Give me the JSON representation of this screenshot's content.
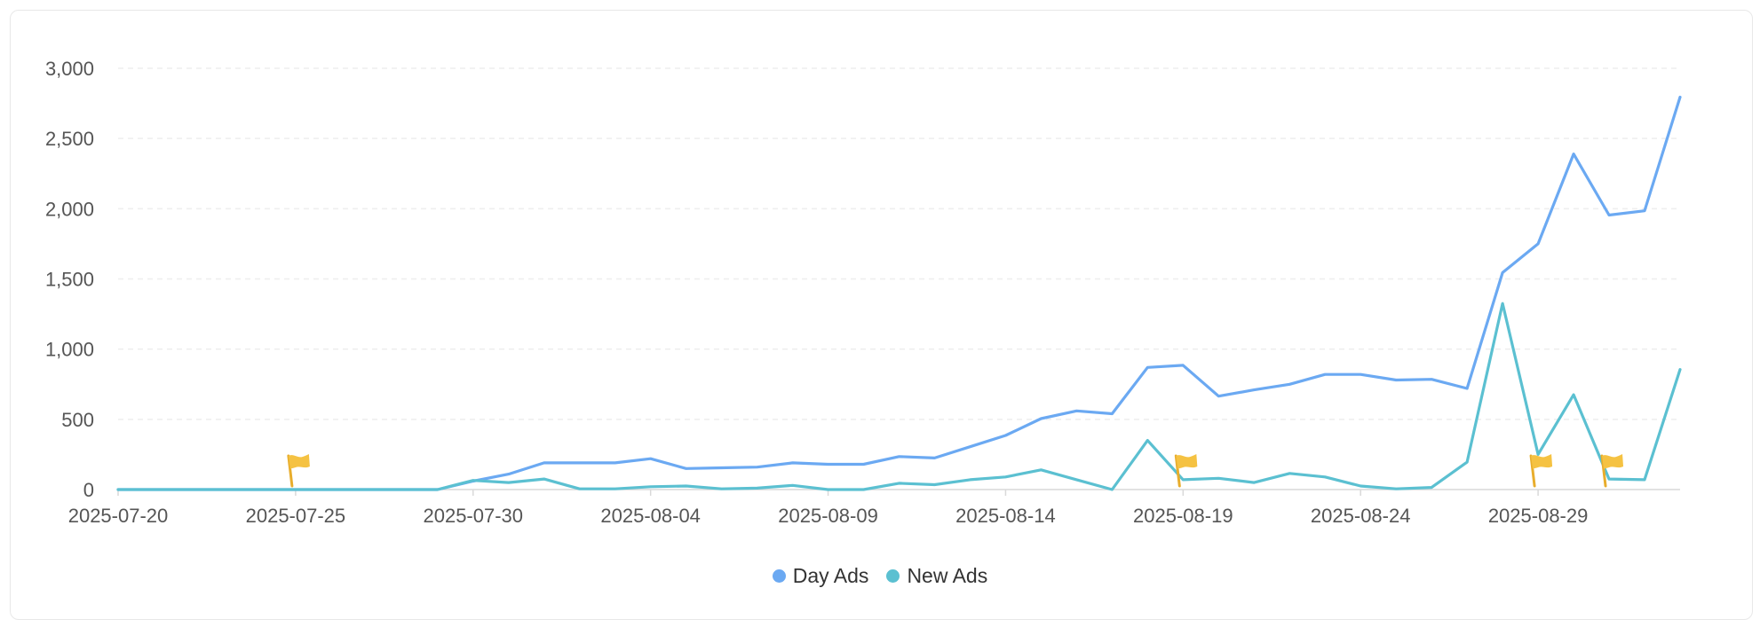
{
  "chart_data": {
    "type": "line",
    "x": [
      "2025-07-20",
      "2025-07-21",
      "2025-07-22",
      "2025-07-23",
      "2025-07-24",
      "2025-07-25",
      "2025-07-26",
      "2025-07-27",
      "2025-07-28",
      "2025-07-29",
      "2025-07-30",
      "2025-07-31",
      "2025-08-01",
      "2025-08-02",
      "2025-08-03",
      "2025-08-04",
      "2025-08-05",
      "2025-08-06",
      "2025-08-07",
      "2025-08-08",
      "2025-08-09",
      "2025-08-10",
      "2025-08-11",
      "2025-08-12",
      "2025-08-13",
      "2025-08-14",
      "2025-08-15",
      "2025-08-16",
      "2025-08-17",
      "2025-08-18",
      "2025-08-19",
      "2025-08-20",
      "2025-08-21",
      "2025-08-22",
      "2025-08-23",
      "2025-08-24",
      "2025-08-25",
      "2025-08-26",
      "2025-08-27",
      "2025-08-28",
      "2025-08-29",
      "2025-08-30",
      "2025-08-31",
      "2025-09-01",
      "2025-09-02"
    ],
    "x_tick_labels": [
      "2025-07-20",
      "2025-07-25",
      "2025-07-30",
      "2025-08-04",
      "2025-08-09",
      "2025-08-14",
      "2025-08-19",
      "2025-08-24",
      "2025-08-29"
    ],
    "y_tick_labels": [
      "3,000",
      "2,500",
      "2,000",
      "1,500",
      "1,000",
      "500",
      "0"
    ],
    "ylim": [
      0,
      3000
    ],
    "grid": true,
    "legend_position": "bottom-center",
    "series": [
      {
        "name": "Day Ads",
        "color": "#6ba9f2",
        "values": [
          0,
          0,
          0,
          0,
          0,
          0,
          0,
          0,
          0,
          0,
          60,
          110,
          190,
          190,
          190,
          220,
          150,
          155,
          160,
          190,
          180,
          180,
          235,
          225,
          305,
          385,
          505,
          560,
          540,
          870,
          885,
          665,
          710,
          750,
          820,
          820,
          780,
          785,
          720,
          1545,
          1750,
          2390,
          1955,
          1985,
          2795
        ]
      },
      {
        "name": "New Ads",
        "color": "#5bc0d1",
        "values": [
          0,
          0,
          0,
          0,
          0,
          0,
          0,
          0,
          0,
          0,
          65,
          50,
          75,
          5,
          5,
          20,
          25,
          5,
          10,
          30,
          0,
          0,
          45,
          35,
          70,
          90,
          140,
          70,
          0,
          350,
          70,
          80,
          50,
          115,
          90,
          25,
          5,
          15,
          195,
          1325,
          250,
          675,
          75,
          70,
          855
        ]
      }
    ],
    "annotations": [
      {
        "type": "flag",
        "x": "2025-07-25",
        "y": 0,
        "color": "#f5c242"
      },
      {
        "type": "flag",
        "x": "2025-08-19",
        "y": 0,
        "color": "#f5c242"
      },
      {
        "type": "flag",
        "x": "2025-08-29",
        "y": 0,
        "color": "#f5c242"
      },
      {
        "type": "flag",
        "x": "2025-08-31",
        "y": 0,
        "color": "#f5c242"
      }
    ]
  }
}
